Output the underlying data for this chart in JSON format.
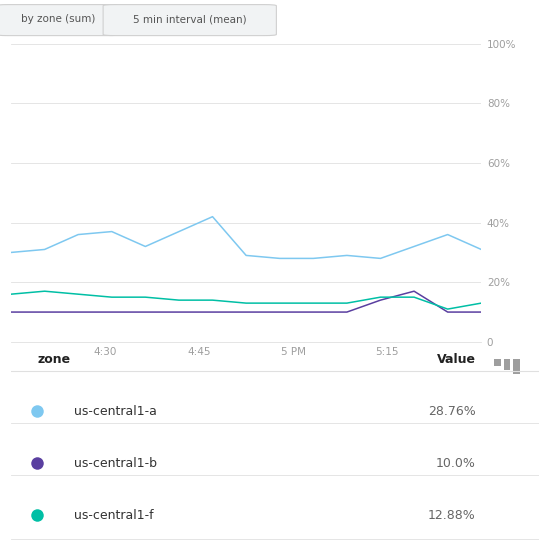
{
  "buttons": [
    "by zone (sum)",
    "5 min interval (mean)"
  ],
  "x_tick_labels": [
    "4:30",
    "4:45",
    "5 PM",
    "5:15"
  ],
  "x_tick_positions": [
    3,
    6,
    9,
    12
  ],
  "series": [
    {
      "name": "us-central1-a",
      "color": "#7EC8F0",
      "value": "28.76%",
      "y": [
        30,
        31,
        36,
        37,
        32,
        37,
        42,
        29,
        28,
        28,
        29,
        28,
        32,
        36,
        31
      ]
    },
    {
      "name": "us-central1-b",
      "color": "#5A3FA0",
      "value": "10.0%",
      "y": [
        10,
        10,
        10,
        10,
        10,
        10,
        10,
        10,
        10,
        10,
        10,
        14,
        17,
        10,
        10
      ]
    },
    {
      "name": "us-central1-f",
      "color": "#00BFA5",
      "value": "12.88%",
      "y": [
        16,
        17,
        16,
        15,
        15,
        14,
        14,
        13,
        13,
        13,
        13,
        15,
        15,
        11,
        13
      ]
    }
  ],
  "background_color": "#ffffff",
  "grid_color": "#e0e0e0",
  "axis_label_color": "#9e9e9e",
  "button_bg": "#f1f3f4",
  "button_text_color": "#555555"
}
